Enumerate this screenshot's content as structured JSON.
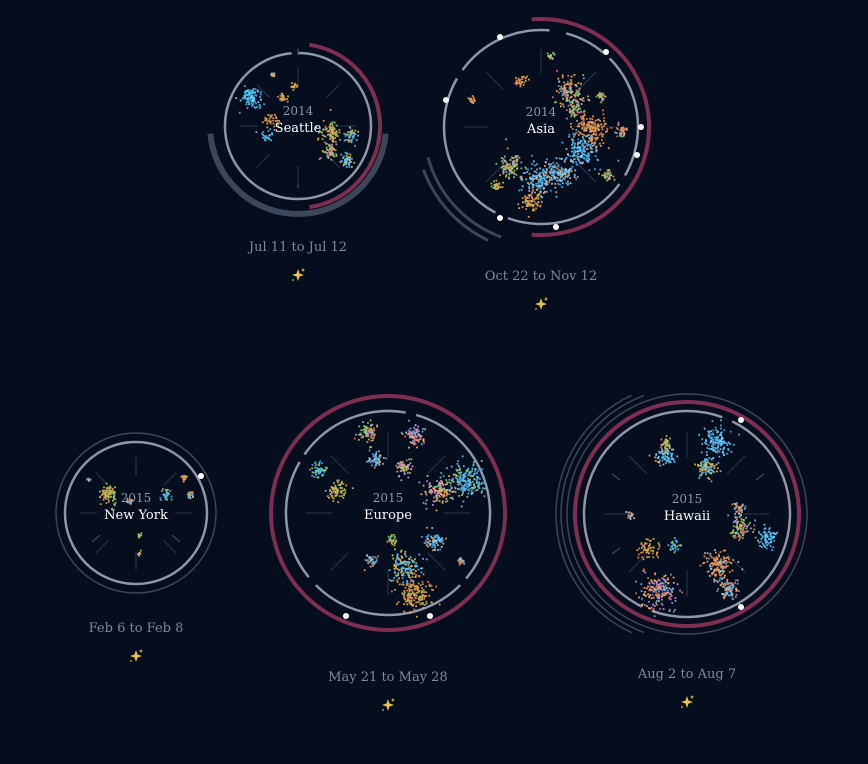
{
  "colors": {
    "background": "#060d1c",
    "ring": "#8d96a6",
    "outer_ring": "#3d4658",
    "accent_ring": "#7d2f4f",
    "label_year": "#8c95a4",
    "label_place": "#ffffff",
    "date_text": "#7f8896",
    "sparkle": "#e8c54a"
  },
  "trips": [
    {
      "year": "2014",
      "place": "Seattle",
      "dates": "Jul 11 to Jul 12",
      "sparkle_icon": "sparkle-icon"
    },
    {
      "year": "2014",
      "place": "Asia",
      "dates": "Oct 22 to Nov 12",
      "sparkle_icon": "sparkle-icon"
    },
    {
      "year": "2015",
      "place": "New York",
      "dates": "Feb 6 to Feb 8",
      "sparkle_icon": "sparkle-icon"
    },
    {
      "year": "2015",
      "place": "Europe",
      "dates": "May 21 to May 28",
      "sparkle_icon": "sparkle-icon"
    },
    {
      "year": "2015",
      "place": "Hawaii",
      "dates": "Aug 2 to Aug 7",
      "sparkle_icon": "sparkle-icon"
    }
  ]
}
